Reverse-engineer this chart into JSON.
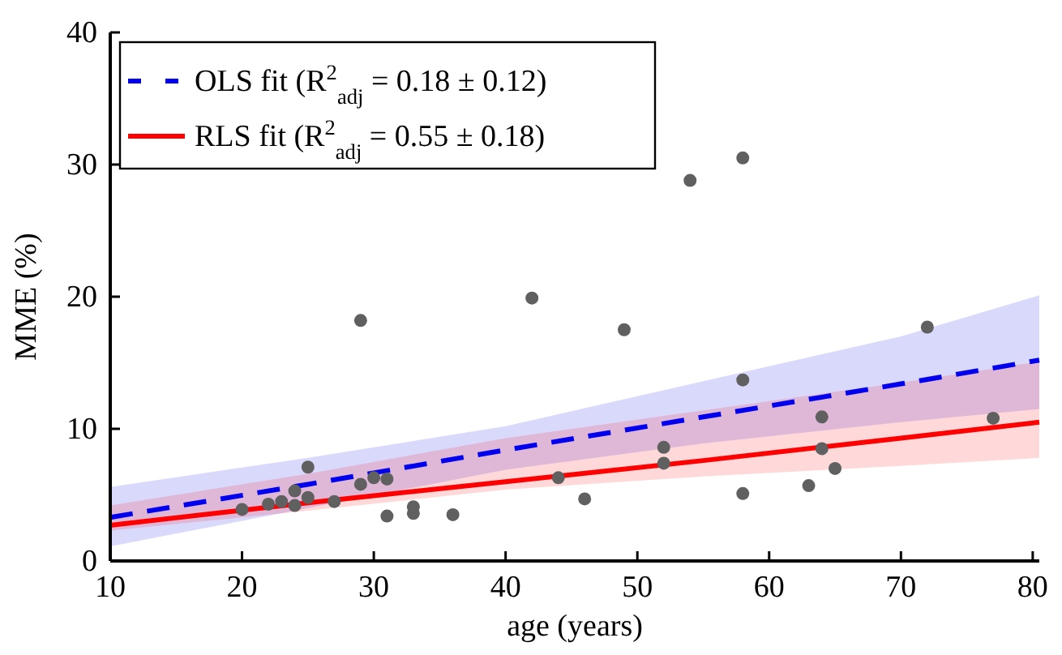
{
  "chart_data": {
    "type": "scatter",
    "xlabel": "age (years)",
    "ylabel": "MME (%)",
    "xlim": [
      10,
      80.5
    ],
    "xticks": [
      10,
      20,
      30,
      40,
      50,
      60,
      70,
      80
    ],
    "ylim": [
      0,
      40
    ],
    "yticks": [
      0,
      10,
      20,
      30,
      40
    ],
    "legend": "top left",
    "series": [
      {
        "name": "OLS fit (R$^{2}$$_{adj}$ = 0.18 ± 0.12)",
        "type": "line",
        "line_style": "dashed",
        "color": "#0000ee",
        "x": [
          10,
          25,
          40,
          55,
          70,
          80.5
        ],
        "values": [
          3.3,
          5.8,
          8.4,
          10.9,
          13.4,
          15.2
        ],
        "lower": [
          1.1,
          4.0,
          6.9,
          8.9,
          10.5,
          11.5
        ],
        "upper": [
          5.6,
          7.8,
          10.2,
          13.6,
          17.0,
          20.1
        ]
      },
      {
        "name": "RLS fit (R$^{2}$$_{adj}$ = 0.55 ± 0.18)",
        "type": "line",
        "line_style": "solid",
        "color": "#ff0000",
        "x": [
          10,
          25,
          40,
          55,
          70,
          80.5
        ],
        "values": [
          2.7,
          4.4,
          6.0,
          7.6,
          9.3,
          10.5
        ],
        "lower": [
          2.3,
          3.8,
          5.4,
          6.4,
          7.2,
          7.8
        ],
        "upper": [
          4.2,
          6.6,
          9.3,
          11.4,
          13.5,
          15.1
        ]
      },
      {
        "marker": "circle",
        "color": "#606060",
        "x": [
          20,
          22,
          23,
          24,
          24,
          25,
          25,
          27,
          29,
          29,
          30,
          31,
          31,
          33,
          33,
          36,
          42,
          44,
          46,
          49,
          52,
          52,
          54,
          58,
          58,
          58,
          63,
          64,
          64,
          65,
          72,
          77
        ],
        "values": [
          3.9,
          4.3,
          4.5,
          4.2,
          5.3,
          4.8,
          7.1,
          4.5,
          18.2,
          5.8,
          6.3,
          6.2,
          3.4,
          3.6,
          4.1,
          3.5,
          19.9,
          6.3,
          4.7,
          17.5,
          8.6,
          7.4,
          28.8,
          30.5,
          13.7,
          5.1,
          5.7,
          10.9,
          8.5,
          7.0,
          17.7,
          10.8
        ]
      }
    ]
  }
}
